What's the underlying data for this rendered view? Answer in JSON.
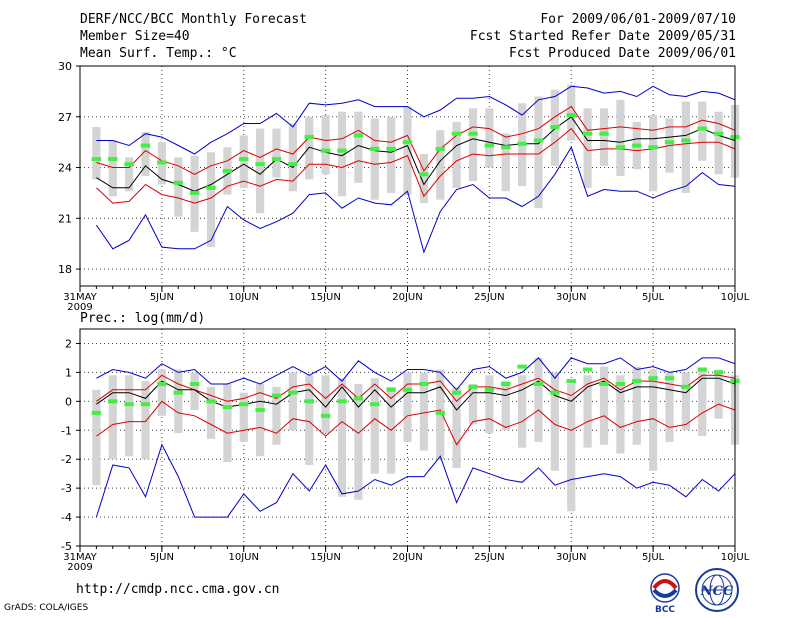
{
  "header": {
    "title": "DERF/NCC/BCC Monthly Forecast",
    "member_size": "Member Size=40",
    "variable": "Mean Surf. Temp.: °C",
    "period": "For 2009/06/01-2009/07/10",
    "refer_date": "Fcst Started Refer Date 2009/05/31",
    "produced_date": "Fcst Produced Date 2009/06/01"
  },
  "footer": {
    "url": "http://cmdp.ncc.cma.gov.cn",
    "grads": "GrADS: COLA/IGES",
    "logo_bcc": "BCC",
    "logo_ncc": "NCC"
  },
  "colors": {
    "envelope": "#0000cc",
    "spread": "#dd0000",
    "mean": "#000000",
    "box": "#d4d4d4",
    "median": "#44ee44",
    "grid": "#444444"
  },
  "chart_data": [
    {
      "type": "line",
      "name": "temperature",
      "title": "Mean Surf. Temp.: °C",
      "ylim": [
        17,
        30
      ],
      "yticks": [
        18,
        21,
        24,
        27,
        30
      ],
      "xlim": [
        0,
        40
      ],
      "xticks": [
        {
          "x": 0,
          "label": "31MAY",
          "sub": "2009"
        },
        {
          "x": 5,
          "label": "5JUN"
        },
        {
          "x": 10,
          "label": "10JUN"
        },
        {
          "x": 15,
          "label": "15JUN"
        },
        {
          "x": 20,
          "label": "20JUN"
        },
        {
          "x": 25,
          "label": "25JUN"
        },
        {
          "x": 30,
          "label": "30JUN"
        },
        {
          "x": 35,
          "label": "5JUL"
        },
        {
          "x": 40,
          "label": "10JUL"
        }
      ],
      "x": [
        1,
        2,
        3,
        4,
        5,
        6,
        7,
        8,
        9,
        10,
        11,
        12,
        13,
        14,
        15,
        16,
        17,
        18,
        19,
        20,
        21,
        22,
        23,
        24,
        25,
        26,
        27,
        28,
        29,
        30,
        31,
        32,
        33,
        34,
        35,
        36,
        37,
        38,
        39,
        40
      ],
      "max": [
        25.6,
        25.6,
        25.3,
        26.0,
        25.8,
        25.3,
        24.8,
        25.5,
        26.0,
        26.6,
        26.6,
        27.2,
        26.4,
        27.8,
        27.7,
        27.8,
        28.0,
        27.6,
        27.6,
        27.6,
        27.0,
        27.4,
        28.1,
        28.1,
        28.2,
        27.7,
        27.1,
        28.0,
        28.2,
        28.8,
        28.7,
        28.4,
        28.5,
        28.2,
        28.8,
        28.3,
        28.2,
        28.5,
        28.4,
        28.0
      ],
      "upper": [
        24.3,
        24.0,
        24.0,
        25.0,
        24.4,
        24.1,
        23.6,
        24.1,
        24.4,
        25.0,
        24.6,
        25.1,
        24.8,
        25.8,
        25.6,
        25.7,
        26.2,
        25.6,
        25.5,
        25.9,
        23.8,
        25.1,
        25.9,
        26.4,
        26.3,
        25.8,
        26.0,
        26.3,
        27.0,
        27.6,
        26.2,
        26.3,
        26.4,
        26.3,
        26.2,
        26.4,
        26.4,
        26.8,
        26.6,
        26.2
      ],
      "mean": [
        23.4,
        22.8,
        22.8,
        24.1,
        23.3,
        23.0,
        22.6,
        23.0,
        23.6,
        24.2,
        23.6,
        24.5,
        24.0,
        25.2,
        24.9,
        24.7,
        25.3,
        25.0,
        24.9,
        25.3,
        23.0,
        24.4,
        25.3,
        25.7,
        25.5,
        25.3,
        25.4,
        25.4,
        26.3,
        27.0,
        25.6,
        25.6,
        25.5,
        25.7,
        25.7,
        25.8,
        25.9,
        26.3,
        25.9,
        25.6
      ],
      "lower": [
        22.8,
        21.9,
        22.0,
        23.0,
        22.4,
        22.2,
        21.9,
        22.2,
        22.9,
        23.2,
        22.9,
        23.3,
        23.2,
        24.2,
        24.2,
        24.0,
        24.4,
        24.2,
        24.3,
        24.7,
        22.3,
        23.5,
        24.4,
        24.8,
        24.7,
        24.8,
        24.8,
        24.8,
        25.5,
        26.3,
        25.0,
        25.1,
        25.1,
        25.0,
        25.1,
        25.3,
        25.4,
        25.5,
        25.5,
        25.1
      ],
      "min": [
        20.6,
        19.2,
        19.7,
        21.2,
        19.3,
        19.2,
        19.2,
        19.7,
        21.7,
        20.9,
        20.4,
        20.8,
        21.3,
        22.4,
        22.5,
        21.6,
        22.2,
        21.9,
        21.8,
        22.6,
        19.0,
        21.4,
        22.7,
        23.0,
        22.2,
        22.2,
        21.7,
        22.3,
        23.6,
        25.2,
        22.3,
        22.7,
        22.6,
        22.6,
        22.2,
        22.6,
        22.9,
        23.7,
        23.0,
        22.9
      ],
      "box_high": [
        26.4,
        25.6,
        24.6,
        26.1,
        25.5,
        24.6,
        24.7,
        24.9,
        25.2,
        25.9,
        26.3,
        26.3,
        26.6,
        27.0,
        27.1,
        27.3,
        27.3,
        26.9,
        27.0,
        27.6,
        24.8,
        26.2,
        26.7,
        27.5,
        27.5,
        26.0,
        27.8,
        28.2,
        28.6,
        28.9,
        27.5,
        27.5,
        28.0,
        26.7,
        27.1,
        26.9,
        27.9,
        27.9,
        27.3,
        27.7
      ],
      "box_low": [
        23.3,
        22.3,
        22.6,
        23.5,
        23.0,
        21.1,
        20.2,
        19.3,
        22.4,
        22.8,
        21.3,
        23.4,
        22.6,
        23.3,
        23.6,
        22.3,
        23.1,
        22.1,
        22.5,
        22.4,
        21.9,
        22.1,
        22.8,
        23.2,
        24.0,
        22.6,
        22.9,
        21.6,
        24.1,
        25.6,
        22.8,
        24.1,
        23.5,
        23.9,
        22.6,
        23.7,
        22.5,
        24.4,
        23.6,
        23.4
      ],
      "median": [
        24.5,
        24.5,
        24.2,
        25.3,
        24.3,
        23.1,
        22.5,
        22.8,
        23.8,
        24.5,
        24.2,
        24.5,
        24.2,
        25.8,
        25.0,
        25.0,
        25.9,
        25.1,
        25.1,
        25.5,
        23.6,
        25.1,
        26.0,
        26.0,
        25.3,
        25.2,
        25.4,
        25.6,
        26.4,
        27.1,
        26.0,
        26.0,
        25.2,
        25.3,
        25.2,
        25.5,
        25.6,
        26.3,
        26.0,
        25.8
      ]
    },
    {
      "type": "line",
      "name": "precipitation",
      "title": "Prec.: log(mm/d)",
      "ylim": [
        -5,
        2.5
      ],
      "yticks": [
        -5,
        -4,
        -3,
        -2,
        -1,
        0,
        1,
        2
      ],
      "xlim": [
        0,
        40
      ],
      "xticks": [
        {
          "x": 0,
          "label": "31MAY",
          "sub": "2009"
        },
        {
          "x": 5,
          "label": "5JUN"
        },
        {
          "x": 10,
          "label": "10JUN"
        },
        {
          "x": 15,
          "label": "15JUN"
        },
        {
          "x": 20,
          "label": "20JUN"
        },
        {
          "x": 25,
          "label": "25JUN"
        },
        {
          "x": 30,
          "label": "30JUN"
        },
        {
          "x": 35,
          "label": "5JUL"
        },
        {
          "x": 40,
          "label": "10JUL"
        }
      ],
      "x": [
        1,
        2,
        3,
        4,
        5,
        6,
        7,
        8,
        9,
        10,
        11,
        12,
        13,
        14,
        15,
        16,
        17,
        18,
        19,
        20,
        21,
        22,
        23,
        24,
        25,
        26,
        27,
        28,
        29,
        30,
        31,
        32,
        33,
        34,
        35,
        36,
        37,
        38,
        39,
        40
      ],
      "max": [
        0.8,
        1.1,
        1.0,
        0.8,
        1.3,
        1.0,
        1.1,
        0.6,
        0.6,
        0.8,
        0.6,
        0.9,
        1.2,
        0.9,
        1.2,
        0.7,
        1.4,
        1.0,
        0.7,
        1.1,
        1.1,
        1.0,
        0.4,
        1.1,
        1.2,
        0.8,
        1.0,
        1.5,
        0.8,
        1.5,
        1.3,
        1.3,
        1.5,
        1.1,
        1.2,
        1.0,
        1.1,
        1.5,
        1.5,
        1.3
      ],
      "upper": [
        0.0,
        0.4,
        0.4,
        0.4,
        0.9,
        0.6,
        0.4,
        0.2,
        0.0,
        0.1,
        0.3,
        0.1,
        0.5,
        0.6,
        0.1,
        0.6,
        0.1,
        0.6,
        0.1,
        0.6,
        0.6,
        0.7,
        0.0,
        0.5,
        0.5,
        0.4,
        0.6,
        0.8,
        0.4,
        0.2,
        0.6,
        0.8,
        0.4,
        0.7,
        0.7,
        0.6,
        0.5,
        0.9,
        0.9,
        0.8
      ],
      "mean": [
        -0.1,
        0.3,
        0.3,
        0.1,
        0.7,
        0.4,
        0.4,
        0.0,
        -0.2,
        -0.1,
        0.0,
        -0.1,
        0.3,
        0.4,
        -0.2,
        0.5,
        -0.2,
        0.4,
        -0.2,
        0.3,
        0.3,
        0.5,
        -0.3,
        0.3,
        0.3,
        0.2,
        0.4,
        0.7,
        0.2,
        0.0,
        0.5,
        0.7,
        0.3,
        0.5,
        0.5,
        0.4,
        0.3,
        0.8,
        0.8,
        0.6
      ],
      "lower": [
        -1.2,
        -0.8,
        -0.7,
        -0.7,
        0.0,
        -0.4,
        -0.5,
        -0.8,
        -1.1,
        -1.0,
        -0.9,
        -1.1,
        -0.6,
        -0.7,
        -1.2,
        -0.7,
        -1.1,
        -0.6,
        -1.0,
        -0.5,
        -0.4,
        -0.3,
        -1.5,
        -0.7,
        -0.6,
        -0.9,
        -0.7,
        -0.3,
        -0.8,
        -1.0,
        -0.7,
        -0.5,
        -0.9,
        -0.7,
        -0.6,
        -0.9,
        -0.8,
        -0.4,
        -0.1,
        -0.3
      ],
      "min": [
        -4.0,
        -2.2,
        -2.3,
        -3.3,
        -1.5,
        -2.6,
        -4.0,
        -4.0,
        -4.0,
        -3.2,
        -3.8,
        -3.5,
        -2.5,
        -3.1,
        -2.2,
        -3.2,
        -3.1,
        -2.7,
        -2.9,
        -2.6,
        -2.6,
        -1.9,
        -3.5,
        -2.3,
        -2.5,
        -2.7,
        -2.8,
        -2.3,
        -2.9,
        -2.7,
        -2.6,
        -2.5,
        -2.6,
        -3.0,
        -2.8,
        -2.9,
        -3.3,
        -2.7,
        -3.1,
        -2.5
      ],
      "box_high": [
        0.4,
        0.9,
        0.9,
        0.7,
        1.1,
        1.1,
        1.0,
        0.5,
        0.6,
        0.3,
        0.6,
        0.5,
        1.0,
        0.9,
        0.9,
        0.8,
        0.6,
        0.8,
        0.5,
        1.0,
        1.0,
        1.1,
        0.5,
        0.6,
        0.9,
        0.7,
        0.9,
        1.5,
        1.0,
        0.6,
        0.9,
        1.2,
        0.9,
        1.2,
        1.1,
        1.0,
        1.0,
        1.1,
        1.1,
        0.9
      ],
      "box_low": [
        -2.9,
        -2.0,
        -1.9,
        -2.0,
        -0.5,
        -1.1,
        -0.3,
        -1.3,
        -2.1,
        -1.4,
        -1.9,
        -1.5,
        -1.0,
        -2.2,
        -1.1,
        -3.3,
        -3.4,
        -2.5,
        -2.5,
        -1.4,
        -1.7,
        -2.0,
        -2.3,
        -0.8,
        -1.1,
        -1.0,
        -1.6,
        -1.4,
        -2.4,
        -3.8,
        -1.6,
        -1.5,
        -1.8,
        -1.5,
        -2.4,
        -1.4,
        -1.0,
        -1.2,
        -0.6,
        -1.5
      ],
      "median": [
        -0.4,
        0.0,
        -0.1,
        -0.1,
        0.6,
        0.3,
        0.6,
        0.0,
        -0.2,
        -0.1,
        -0.3,
        0.2,
        0.3,
        0.0,
        -0.5,
        0.0,
        0.1,
        -0.1,
        0.4,
        0.4,
        0.6,
        -0.4,
        0.3,
        0.5,
        0.4,
        0.6,
        1.2,
        0.6,
        0.3,
        0.7,
        1.1,
        0.6,
        0.6,
        0.7,
        0.8,
        0.8,
        0.5,
        1.1,
        1.0,
        0.7
      ]
    }
  ]
}
